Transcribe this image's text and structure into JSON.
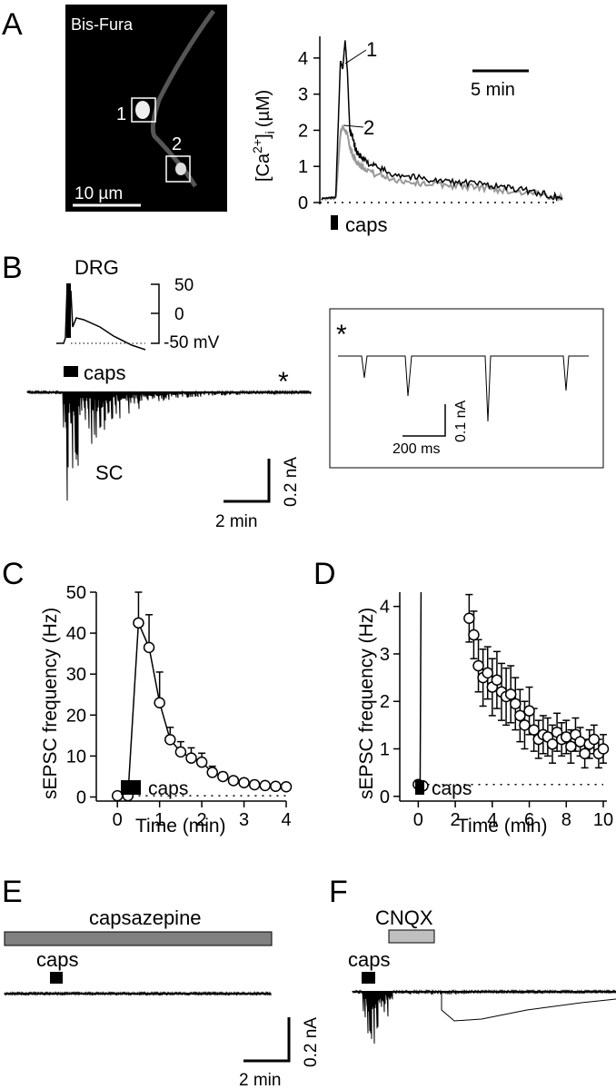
{
  "panels": {
    "A": {
      "letter": "A",
      "image_title": "Bis-Fura",
      "roi_labels": [
        "1",
        "2"
      ],
      "scalebar_image": "10 µm",
      "ylabel_main": "[Ca",
      "ylabel_sup": "2+",
      "ylabel_rest": "]",
      "ylabel_sub": "i",
      "ylabel_unit": "(µM)",
      "scalebar_time": "5 min",
      "trace_labels": [
        "1",
        "2"
      ],
      "stim_label": "caps"
    },
    "B": {
      "letter": "B",
      "cell_label": "DRG",
      "mv_ticks": [
        "50",
        "0",
        "-50 mV"
      ],
      "stim_label": "caps",
      "region_label": "SC",
      "asterisk": "*",
      "scalebar_current": "0.2 nA",
      "scalebar_time": "2 min",
      "inset_asterisk": "*",
      "inset_scale_current": "0.1 nA",
      "inset_scale_time": "200 ms"
    },
    "C": {
      "letter": "C",
      "stim_label": "caps"
    },
    "D": {
      "letter": "D",
      "stim_label": "caps"
    },
    "E": {
      "letter": "E",
      "drug_label": "capsazepine",
      "stim_label": "caps",
      "scalebar_current": "0.2 nA",
      "scalebar_time": "2 min"
    },
    "F": {
      "letter": "F",
      "drug_label": "CNQX",
      "stim_label": "caps"
    }
  },
  "colors": {
    "trace1": "#000000",
    "trace2": "#999999",
    "capsazepine_bar": "#808080",
    "cnqx_bar": "#bfbfbf"
  },
  "chart_data": [
    {
      "panel": "A",
      "type": "line",
      "ylabel": "[Ca2+]i (µM)",
      "yticks": [
        0,
        1,
        2,
        3,
        4
      ],
      "ylim": [
        0,
        4.6
      ],
      "series": [
        {
          "name": "1",
          "x": [
            0,
            1.2,
            1.6,
            1.8,
            2.0,
            2.2,
            2.4,
            2.7,
            3.0,
            3.5,
            4.5,
            6,
            8,
            10,
            12,
            14,
            16,
            18,
            19.5,
            20.5
          ],
          "values": [
            0.1,
            0.15,
            3.9,
            3.7,
            4.5,
            3.6,
            2.0,
            1.7,
            1.4,
            1.2,
            1.0,
            0.8,
            0.7,
            0.6,
            0.55,
            0.5,
            0.4,
            0.3,
            0.2,
            0.12
          ]
        },
        {
          "name": "2",
          "x": [
            0,
            1.2,
            1.6,
            1.8,
            2.0,
            2.2,
            2.4,
            2.7,
            3.0,
            3.5,
            4.5,
            6,
            8,
            10,
            12,
            14,
            16,
            18,
            19.5,
            20.5
          ],
          "values": [
            0.1,
            0.12,
            1.9,
            2.1,
            2.0,
            1.9,
            1.5,
            1.3,
            1.1,
            1.0,
            0.8,
            0.65,
            0.55,
            0.5,
            0.45,
            0.4,
            0.32,
            0.25,
            0.18,
            0.12
          ]
        }
      ]
    },
    {
      "panel": "C",
      "type": "scatter",
      "xlabel": "Time (min)",
      "ylabel": "sEPSC frequency (Hz)",
      "xlim": [
        -0.5,
        4
      ],
      "ylim": [
        -1,
        50
      ],
      "xticks": [
        0,
        1,
        2,
        3,
        4
      ],
      "yticks": [
        0,
        10,
        20,
        30,
        40,
        50
      ],
      "x": [
        0,
        0.25,
        0.5,
        0.75,
        1.0,
        1.25,
        1.5,
        1.75,
        2.0,
        2.25,
        2.5,
        2.75,
        3.0,
        3.25,
        3.5,
        3.75,
        4.0
      ],
      "values": [
        0.3,
        0.3,
        42.5,
        36.5,
        23,
        14,
        11,
        9.5,
        8.5,
        6,
        5,
        4,
        3.5,
        3,
        2.8,
        2.6,
        2.5
      ],
      "errors": [
        0,
        0,
        7.5,
        8,
        7.5,
        3,
        2.5,
        2.5,
        2.2,
        1.5,
        1,
        0.8,
        0.6,
        0.5,
        0.5,
        0.4,
        0.4
      ],
      "baseline": 0.3
    },
    {
      "panel": "D",
      "type": "scatter",
      "xlabel": "Time (min)",
      "ylabel": "sEPSC frequency (Hz)",
      "xlim": [
        -1,
        10
      ],
      "ylim": [
        -0.1,
        4.3
      ],
      "xticks": [
        0,
        2,
        4,
        6,
        8,
        10
      ],
      "yticks": [
        0,
        1,
        2,
        3,
        4
      ],
      "x": [
        0,
        0.25,
        2.75,
        3.0,
        3.25,
        3.5,
        3.75,
        4.0,
        4.25,
        4.5,
        4.75,
        5.0,
        5.25,
        5.5,
        5.75,
        6.0,
        6.25,
        6.5,
        6.75,
        7.0,
        7.25,
        7.5,
        7.75,
        8.0,
        8.25,
        8.5,
        8.75,
        9.0,
        9.25,
        9.5,
        9.75,
        10.0
      ],
      "values": [
        0.25,
        0.22,
        3.75,
        3.4,
        2.75,
        2.5,
        2.6,
        2.3,
        2.45,
        2.2,
        2.1,
        2.15,
        1.95,
        1.7,
        1.5,
        1.8,
        1.4,
        1.2,
        1.3,
        1.25,
        1.1,
        1.35,
        1.2,
        1.25,
        1.05,
        1.3,
        1.15,
        0.9,
        1.1,
        1.2,
        0.9,
        1.0
      ],
      "errors": [
        0,
        0,
        0.5,
        0.5,
        0.55,
        0.6,
        0.55,
        0.6,
        0.6,
        0.6,
        0.6,
        0.6,
        0.55,
        0.55,
        0.5,
        0.5,
        0.45,
        0.4,
        0.4,
        0.4,
        0.4,
        0.4,
        0.35,
        0.35,
        0.35,
        0.35,
        0.3,
        0.3,
        0.3,
        0.3,
        0.3,
        0.3
      ],
      "baseline": 0.25
    }
  ]
}
